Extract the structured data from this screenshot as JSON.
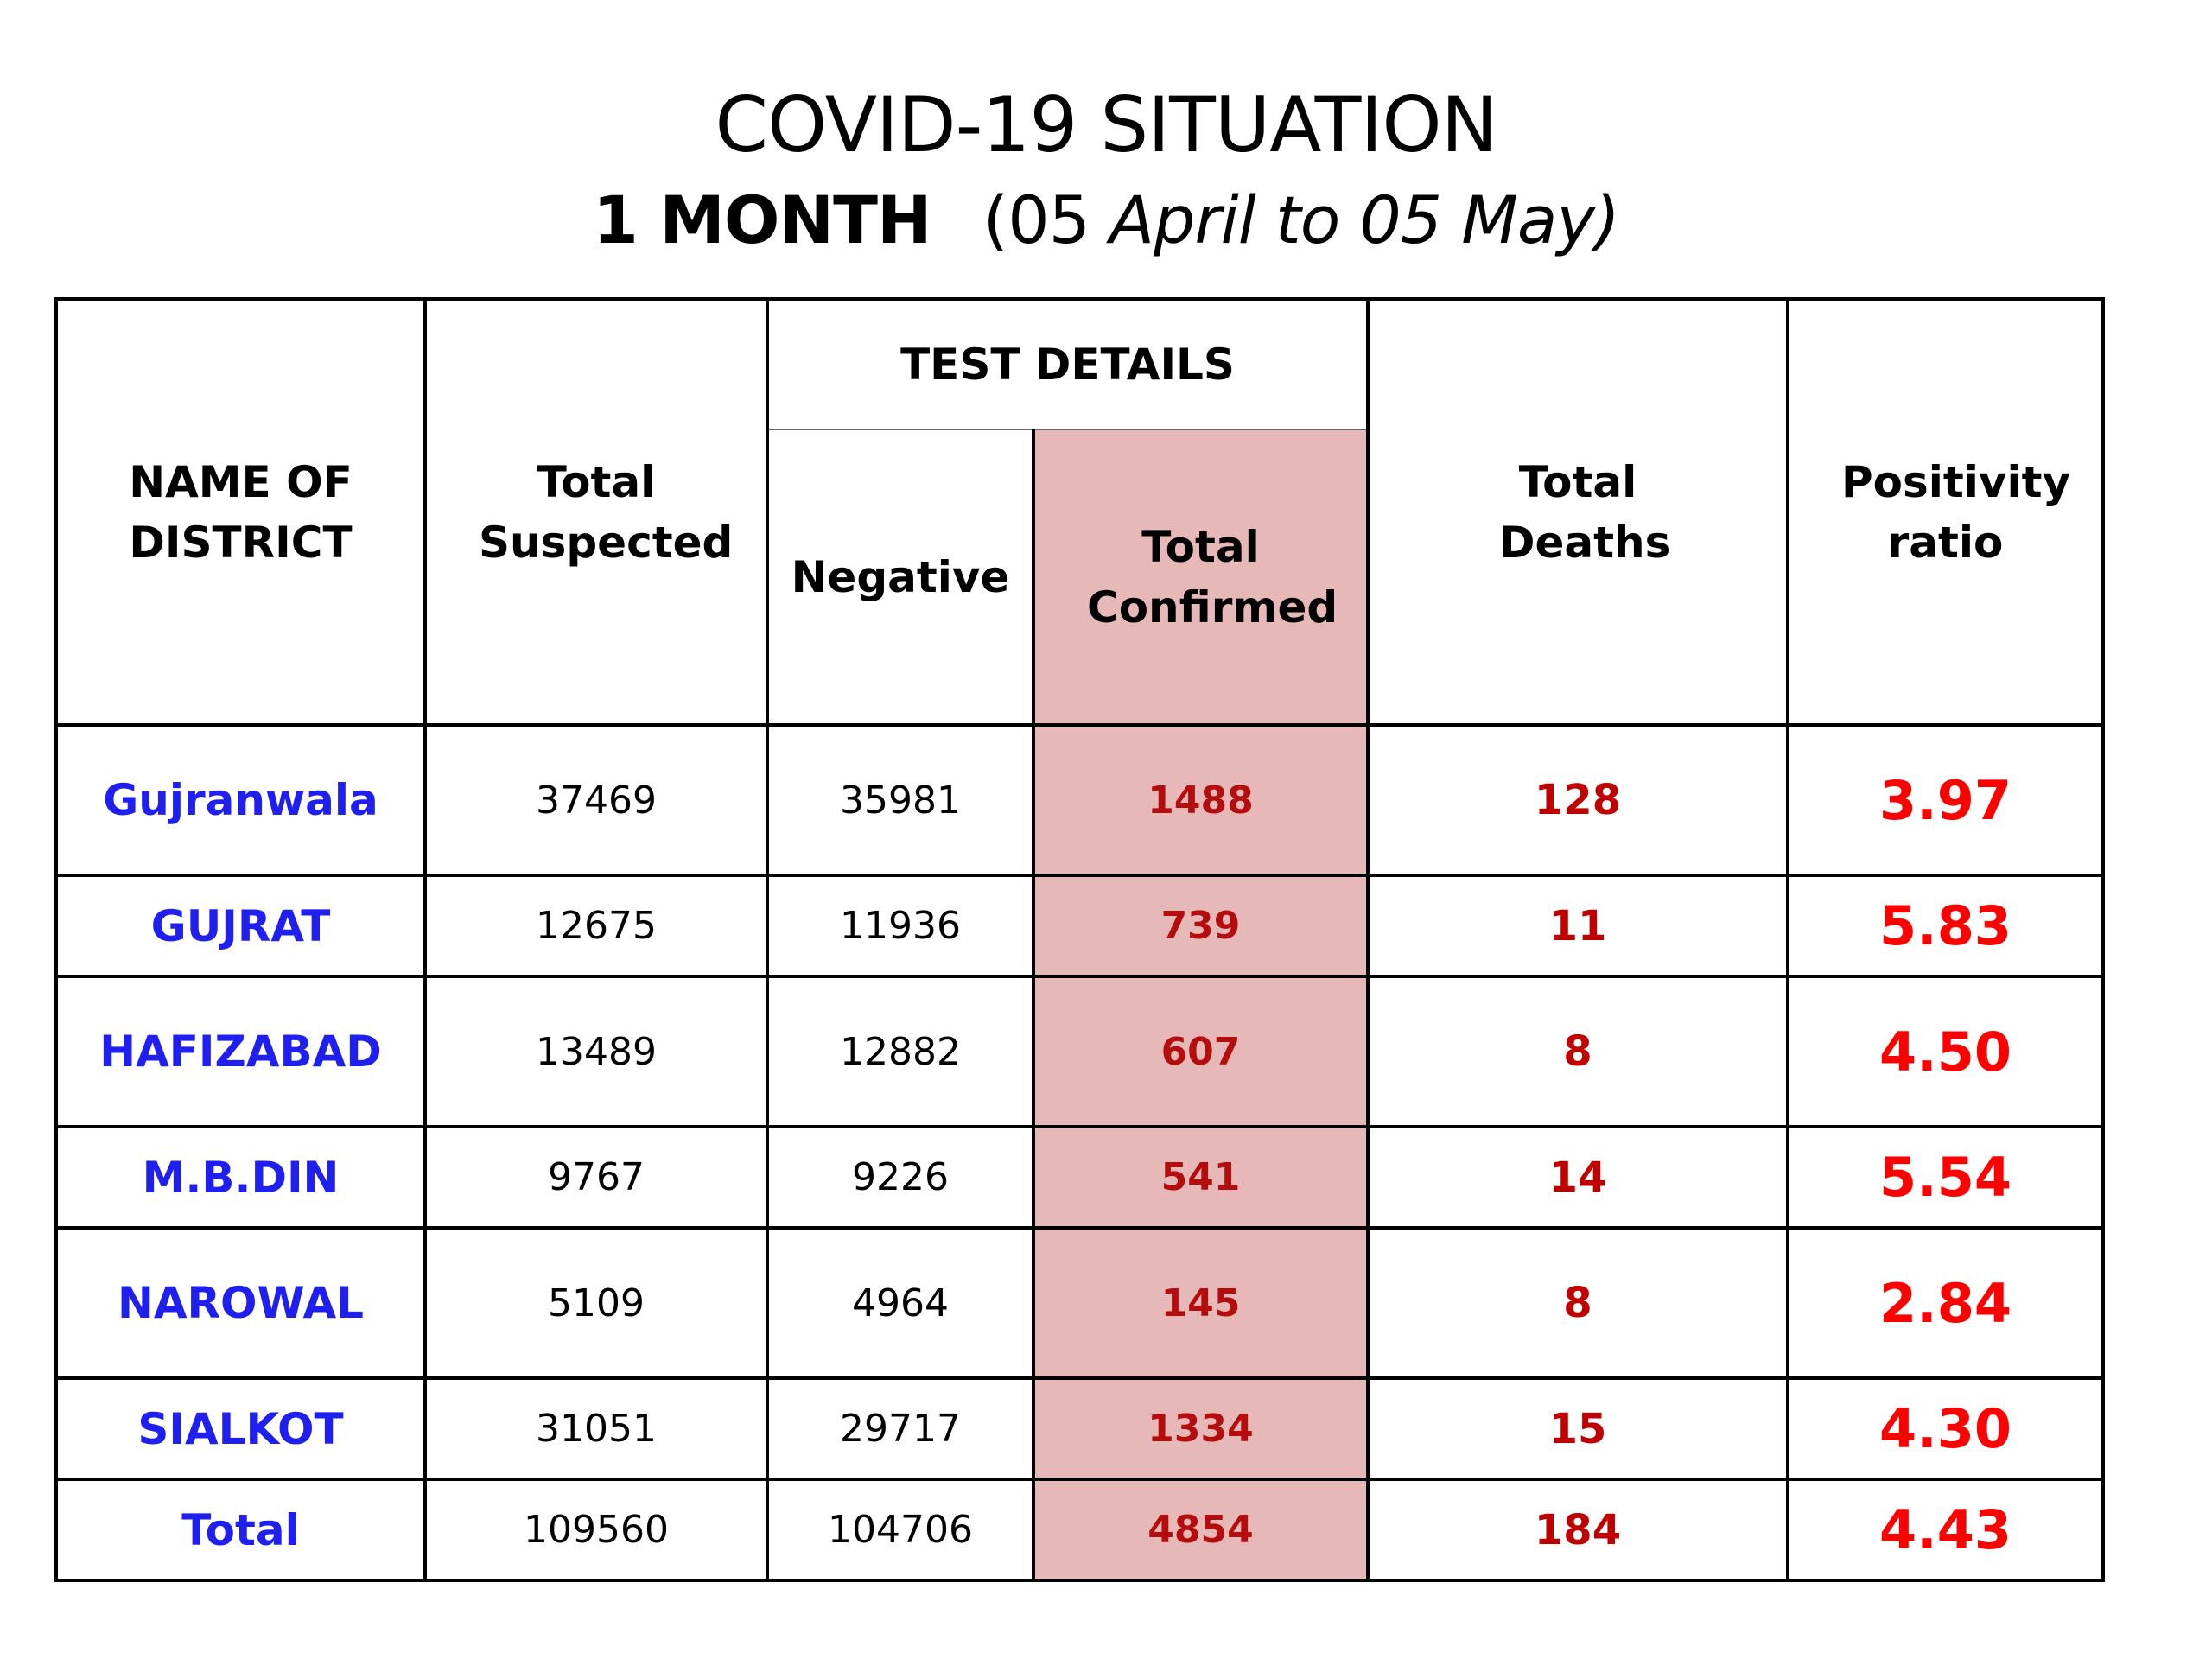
{
  "title": "COVID-19 SITUATION",
  "subtitle": {
    "period": "1 MONTH",
    "range_open": "(05 ",
    "range_italic": "April to 05 May)"
  },
  "table": {
    "headers": {
      "district": "NAME OF DISTRICT",
      "suspected": "Total Suspected",
      "test_details": "TEST DETAILS",
      "negative": "Negative",
      "confirmed": "Total Confirmed",
      "deaths": "Total Deaths",
      "ratio": "Positivity ratio"
    },
    "rows": [
      {
        "district": "Gujranwala",
        "suspected": "37469",
        "negative": "35981",
        "confirmed": "1488",
        "deaths": "128",
        "ratio": "3.97"
      },
      {
        "district": "GUJRAT",
        "suspected": "12675",
        "negative": "11936",
        "confirmed": "739",
        "deaths": "11",
        "ratio": "5.83"
      },
      {
        "district": "HAFIZABAD",
        "suspected": "13489",
        "negative": "12882",
        "confirmed": "607",
        "deaths": "8",
        "ratio": "4.50"
      },
      {
        "district": "M.B.DIN",
        "suspected": "9767",
        "negative": "9226",
        "confirmed": "541",
        "deaths": "14",
        "ratio": "5.54"
      },
      {
        "district": "NAROWAL",
        "suspected": "5109",
        "negative": "4964",
        "confirmed": "145",
        "deaths": "8",
        "ratio": "2.84"
      },
      {
        "district": "SIALKOT",
        "suspected": "31051",
        "negative": "29717",
        "confirmed": "1334",
        "deaths": "15",
        "ratio": "4.30"
      }
    ],
    "total": {
      "district": "Total",
      "suspected": "109560",
      "negative": "104706",
      "confirmed": "4854",
      "deaths": "184",
      "ratio": "4.43"
    }
  },
  "colors": {
    "district_text": "#1f1ff0",
    "confirmed_text": "#b50d0d",
    "ratio_text": "#ff0000",
    "highlight_column": "#e6b9b8"
  }
}
